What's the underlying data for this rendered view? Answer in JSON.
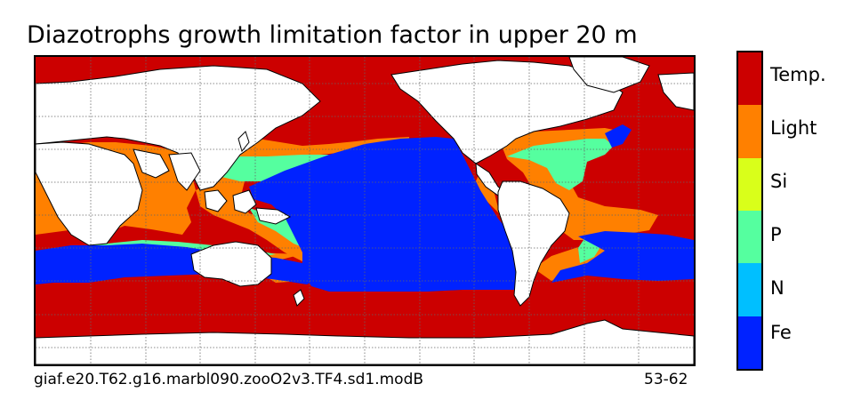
{
  "title": "Diazotrophs growth limitation factor in upper 20 m",
  "caption_left": "giaf.e20.T62.g16.marbl090.zooO2v3.TF4.sd1.modB",
  "caption_right": "53-62",
  "legend": [
    {
      "label": "Temp.",
      "color": "#cc0000"
    },
    {
      "label": "Light",
      "color": "#ff8000"
    },
    {
      "label": "Si",
      "color": "#d9ff1a"
    },
    {
      "label": "P",
      "color": "#55ff9f"
    },
    {
      "label": "N",
      "color": "#00bfff"
    },
    {
      "label": "Fe",
      "color": "#0022ff"
    }
  ],
  "map": {
    "colors": {
      "land": "#ffffff",
      "temp": "#cc0000",
      "light": "#ff8000",
      "p": "#55ff9f",
      "fe": "#0022ff",
      "coast": "#000000",
      "grid": "#666666"
    }
  }
}
